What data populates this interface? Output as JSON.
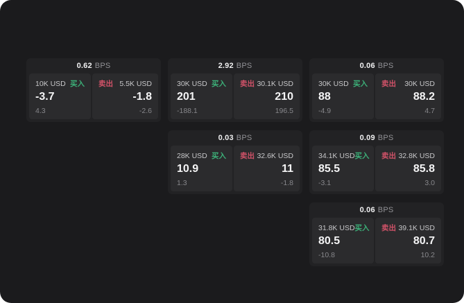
{
  "labels": {
    "buy": "买入",
    "sell": "卖出",
    "bps_unit": "BPS"
  },
  "colors": {
    "page_corner_background": "#ffffff",
    "surface": "#1b1b1d",
    "card": "#222224",
    "panel": "#2b2b2d",
    "buy_green": "#3caf78",
    "sell_red": "#d05268",
    "value_text": "#f4f4f5",
    "muted_text": "#87878b"
  },
  "cards": [
    {
      "bps": "0.62",
      "buy": {
        "size": "10K USD",
        "value": "-3.7",
        "delta": "4.3"
      },
      "sell": {
        "size": "5.5K USD",
        "value": "-1.8",
        "delta": "-2.6"
      }
    },
    {
      "bps": "2.92",
      "buy": {
        "size": "30K USD",
        "value": "201",
        "delta": "-188.1"
      },
      "sell": {
        "size": "30.1K USD",
        "value": "210",
        "delta": "196.5"
      }
    },
    {
      "bps": "0.06",
      "buy": {
        "size": "30K USD",
        "value": "88",
        "delta": "-4.9"
      },
      "sell": {
        "size": "30K USD",
        "value": "88.2",
        "delta": "4.7"
      }
    },
    {
      "bps": "0.03",
      "buy": {
        "size": "28K USD",
        "value": "10.9",
        "delta": "1.3"
      },
      "sell": {
        "size": "32.6K USD",
        "value": "11",
        "delta": "-1.8"
      }
    },
    {
      "bps": "0.09",
      "buy": {
        "size": "34.1K USD",
        "value": "85.5",
        "delta": "-3.1"
      },
      "sell": {
        "size": "32.8K USD",
        "value": "85.8",
        "delta": "3.0"
      }
    },
    {
      "bps": "0.06",
      "buy": {
        "size": "31.8K USD",
        "value": "80.5",
        "delta": "-10.8"
      },
      "sell": {
        "size": "39.1K USD",
        "value": "80.7",
        "delta": "10.2"
      }
    }
  ]
}
